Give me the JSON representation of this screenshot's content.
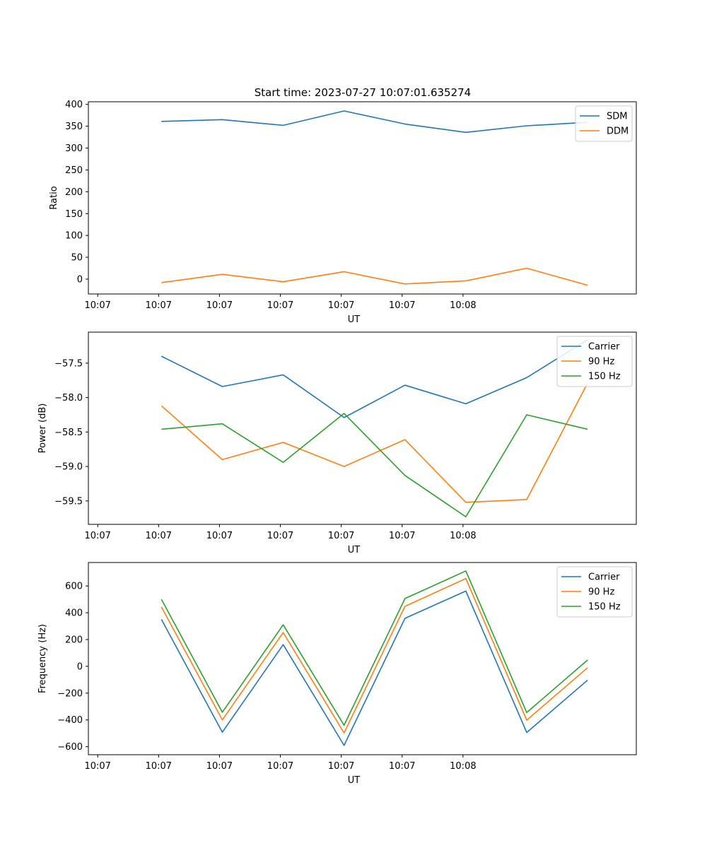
{
  "figure": {
    "title": "Start time: 2023-07-27 10:07:01.635274"
  },
  "chart_data": [
    {
      "type": "line",
      "title": "Start time: 2023-07-27 10:07:01.635274",
      "xlabel": "UT",
      "ylabel": "Ratio",
      "x_tick_labels": [
        "10:07",
        "10:07",
        "10:07",
        "10:07",
        "10:07",
        "10:07",
        "10:08"
      ],
      "x_index": [
        0.5,
        1,
        1.5,
        2,
        2.5,
        3,
        3.5,
        4
      ],
      "xlim": [
        -0.1,
        4.4
      ],
      "ylim": [
        -34,
        406
      ],
      "yticks": [
        0,
        50,
        100,
        150,
        200,
        250,
        300,
        350,
        400
      ],
      "legend": "top-right",
      "series": [
        {
          "name": "SDM",
          "color": "#1f77b4",
          "values": [
            361,
            365,
            352,
            385,
            355,
            336,
            351,
            359
          ]
        },
        {
          "name": "DDM",
          "color": "#ff7f0e",
          "values": [
            -8,
            11,
            -6,
            17,
            -11,
            -4,
            25,
            -14
          ]
        }
      ]
    },
    {
      "type": "line",
      "title": "",
      "xlabel": "UT",
      "ylabel": "Power (dB)",
      "x_tick_labels": [
        "10:07",
        "10:07",
        "10:07",
        "10:07",
        "10:07",
        "10:07",
        "10:08"
      ],
      "x_index": [
        0.5,
        1,
        1.5,
        2,
        2.5,
        3,
        3.5,
        4
      ],
      "xlim": [
        -0.1,
        4.4
      ],
      "ylim": [
        -59.84,
        -57.05
      ],
      "yticks": [
        -57.5,
        -58.0,
        -58.5,
        -59.0,
        -59.5
      ],
      "ytick_labels": [
        "−57.5",
        "−58.0",
        "−58.5",
        "−59.0",
        "−59.5"
      ],
      "legend": "top-right",
      "series": [
        {
          "name": "Carrier",
          "color": "#1f77b4",
          "values": [
            -57.4,
            -57.84,
            -57.67,
            -58.29,
            -57.82,
            -58.09,
            -57.71,
            -57.16
          ]
        },
        {
          "name": "90 Hz",
          "color": "#ff7f0e",
          "values": [
            -58.12,
            -58.9,
            -58.65,
            -59.0,
            -58.61,
            -59.52,
            -59.48,
            -57.79
          ]
        },
        {
          "name": "150 Hz",
          "color": "#2ca02c",
          "values": [
            -58.46,
            -58.38,
            -58.94,
            -58.23,
            -59.13,
            -59.73,
            -58.25,
            -58.46
          ]
        }
      ]
    },
    {
      "type": "line",
      "title": "",
      "xlabel": "UT",
      "ylabel": "Frequency (Hz)",
      "x_tick_labels": [
        "10:07",
        "10:07",
        "10:07",
        "10:07",
        "10:07",
        "10:07",
        "10:08"
      ],
      "x_index": [
        0.5,
        1,
        1.5,
        2,
        2.5,
        3,
        3.5,
        4
      ],
      "xlim": [
        -0.1,
        4.4
      ],
      "ylim": [
        -660,
        775
      ],
      "yticks": [
        -600,
        -400,
        -200,
        0,
        200,
        400,
        600
      ],
      "ytick_labels": [
        "−600",
        "−400",
        "−200",
        "0",
        "200",
        "400",
        "600"
      ],
      "legend": "top-right",
      "series": [
        {
          "name": "Carrier",
          "color": "#1f77b4",
          "values": [
            350,
            -492,
            162,
            -590,
            358,
            562,
            -494,
            -103
          ]
        },
        {
          "name": "90 Hz",
          "color": "#ff7f0e",
          "values": [
            443,
            -400,
            252,
            -497,
            448,
            655,
            -402,
            -10
          ]
        },
        {
          "name": "150 Hz",
          "color": "#2ca02c",
          "values": [
            500,
            -343,
            310,
            -440,
            506,
            712,
            -345,
            47
          ]
        }
      ]
    }
  ]
}
